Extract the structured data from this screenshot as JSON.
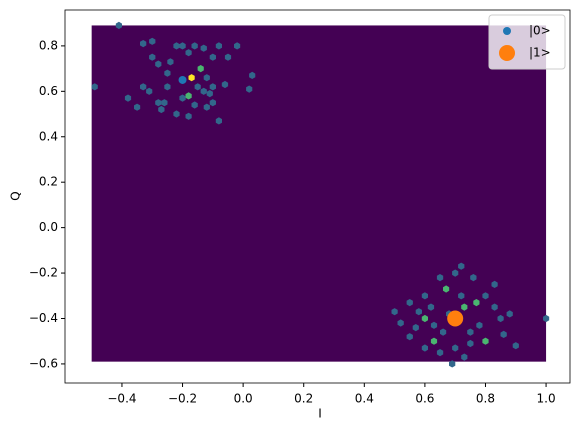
{
  "chart_data": {
    "type": "hexbin",
    "xlabel": "I",
    "ylabel": "Q",
    "xlim": [
      -0.588,
      1.079
    ],
    "ylim": [
      -0.684,
      0.958
    ],
    "xticks": [
      {
        "value": -0.4,
        "label": "−0.4"
      },
      {
        "value": -0.2,
        "label": "−0.2"
      },
      {
        "value": 0,
        "label": "0.0"
      },
      0.2,
      0.4,
      0.6,
      0.8,
      {
        "value": 1,
        "label": "1.0"
      }
    ],
    "yticks": [
      {
        "value": -0.6,
        "label": "−0.6"
      },
      {
        "value": -0.4,
        "label": "−0.4"
      },
      {
        "value": -0.2,
        "label": "−0.2"
      },
      {
        "value": 0,
        "label": "0.0"
      },
      0.2,
      0.4,
      0.6,
      0.8
    ],
    "xextent": [
      -0.5,
      1.0
    ],
    "yextent": [
      -0.59,
      0.89
    ],
    "colormap": "viridis",
    "vmax": 3,
    "cells": {
      "x": [
        -0.41,
        -0.33,
        -0.3,
        -0.28,
        -0.25,
        -0.22,
        -0.2,
        -0.18,
        -0.16,
        -0.13,
        -0.1,
        -0.08,
        -0.05,
        -0.02,
        -0.17,
        -0.15,
        -0.13,
        -0.11,
        -0.18,
        -0.2,
        -0.25,
        -0.28,
        -0.31,
        -0.33,
        -0.49,
        -0.38,
        -0.35,
        -0.27,
        -0.22,
        -0.18,
        -0.12,
        -0.1,
        -0.08,
        -0.14,
        -0.12,
        -0.1,
        -0.06,
        0.02,
        0.03,
        -0.24,
        -0.3,
        -0.26,
        -0.16,
        0.7,
        0.72,
        0.65,
        0.67,
        0.6,
        0.55,
        0.5,
        0.58,
        0.62,
        0.73,
        0.77,
        0.8,
        0.83,
        0.85,
        0.78,
        0.75,
        0.6,
        0.63,
        0.66,
        0.63,
        0.6,
        0.65,
        0.7,
        0.75,
        0.8,
        0.86,
        0.9,
        0.55,
        0.57,
        0.52,
        0.68,
        0.72,
        0.69,
        0.73,
        1.0,
        0.83,
        0.76,
        0.88
      ],
      "y": [
        0.89,
        0.81,
        0.75,
        0.72,
        0.68,
        0.8,
        0.8,
        0.77,
        0.8,
        0.79,
        0.75,
        0.8,
        0.75,
        0.8,
        0.66,
        0.62,
        0.6,
        0.59,
        0.58,
        0.57,
        0.62,
        0.55,
        0.6,
        0.62,
        0.62,
        0.57,
        0.53,
        0.52,
        0.5,
        0.49,
        0.53,
        0.55,
        0.47,
        0.7,
        0.66,
        0.62,
        0.63,
        0.61,
        0.67,
        0.73,
        0.82,
        0.55,
        0.54,
        -0.2,
        -0.17,
        -0.22,
        -0.27,
        -0.3,
        -0.33,
        -0.37,
        -0.37,
        -0.35,
        -0.35,
        -0.33,
        -0.3,
        -0.35,
        -0.4,
        -0.43,
        -0.46,
        -0.4,
        -0.43,
        -0.46,
        -0.5,
        -0.53,
        -0.55,
        -0.53,
        -0.51,
        -0.5,
        -0.47,
        -0.52,
        -0.48,
        -0.44,
        -0.42,
        -0.38,
        -0.3,
        -0.6,
        -0.57,
        -0.4,
        -0.25,
        -0.22,
        -0.38
      ],
      "counts": [
        1,
        1,
        1,
        1,
        1,
        1,
        1,
        1,
        1,
        1,
        1,
        1,
        1,
        1,
        3,
        1,
        1,
        1,
        2,
        1,
        1,
        1,
        1,
        1,
        1,
        1,
        1,
        1,
        1,
        1,
        1,
        1,
        1,
        2,
        1,
        1,
        1,
        1,
        1,
        1,
        1,
        1,
        1,
        1,
        1,
        1,
        2,
        1,
        1,
        1,
        1,
        1,
        2,
        2,
        1,
        1,
        1,
        1,
        1,
        2,
        1,
        1,
        2,
        1,
        1,
        1,
        1,
        2,
        1,
        1,
        1,
        1,
        1,
        1,
        1,
        1,
        1,
        1,
        1,
        1,
        1
      ]
    },
    "series": [
      {
        "name": "|0>",
        "color": "#1f77b4",
        "x": [
          -0.2
        ],
        "y": [
          0.65
        ],
        "marker_size": 4
      },
      {
        "name": "|1>",
        "color": "#ff7f0e",
        "x": [
          0.7
        ],
        "y": [
          -0.4
        ],
        "marker_size": 8
      }
    ],
    "legend": "upper right"
  }
}
